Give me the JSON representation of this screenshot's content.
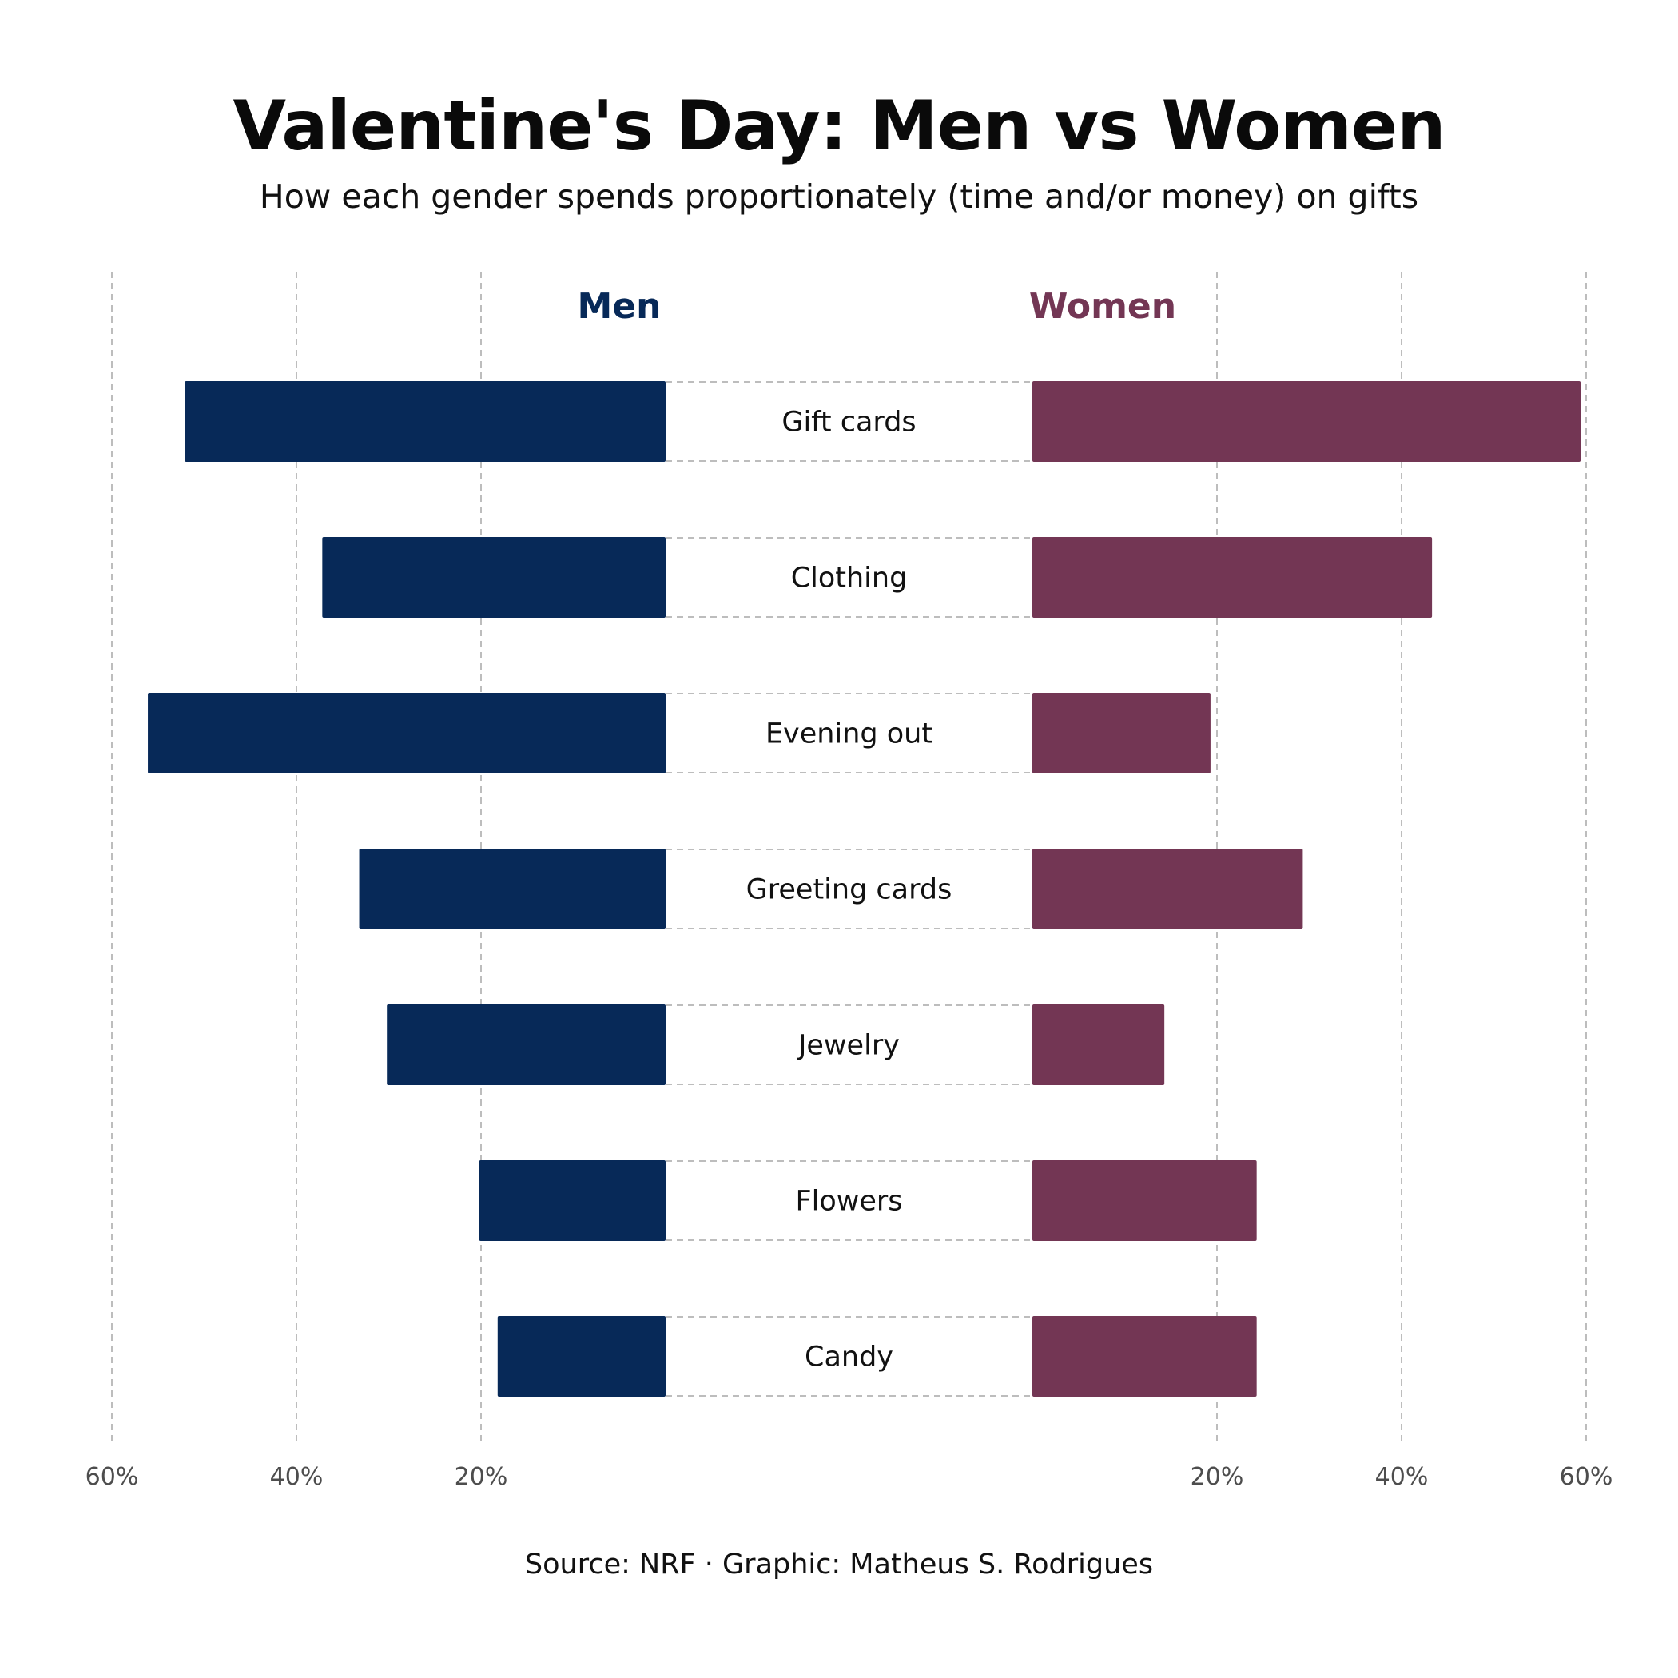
{
  "chart_data": {
    "type": "bar",
    "orientation": "horizontal-diverging",
    "title": "Valentine's Day: Men vs Women",
    "subtitle": "How each gender spends proportionately (time and/or money) on gifts",
    "caption": "Source: NRF · Graphic: Matheus S. Rodrigues",
    "categories": [
      "Gift cards",
      "Clothing",
      "Evening out",
      "Greeting cards",
      "Jewelry",
      "Flowers",
      "Candy"
    ],
    "series": [
      {
        "name": "Men",
        "color": "#072958",
        "values": [
          52.1,
          37.2,
          56.1,
          33.2,
          30.2,
          20.2,
          18.2
        ]
      },
      {
        "name": "Women",
        "color": "#733654",
        "values": [
          59.4,
          43.3,
          19.3,
          29.3,
          14.3,
          24.3,
          24.3
        ]
      }
    ],
    "xlim": [
      0,
      60
    ],
    "ticks": [
      20,
      40,
      60
    ],
    "tick_labels": [
      "20%",
      "40%",
      "60%"
    ],
    "grid": "vertical dashed",
    "legend": "series names above each side"
  }
}
